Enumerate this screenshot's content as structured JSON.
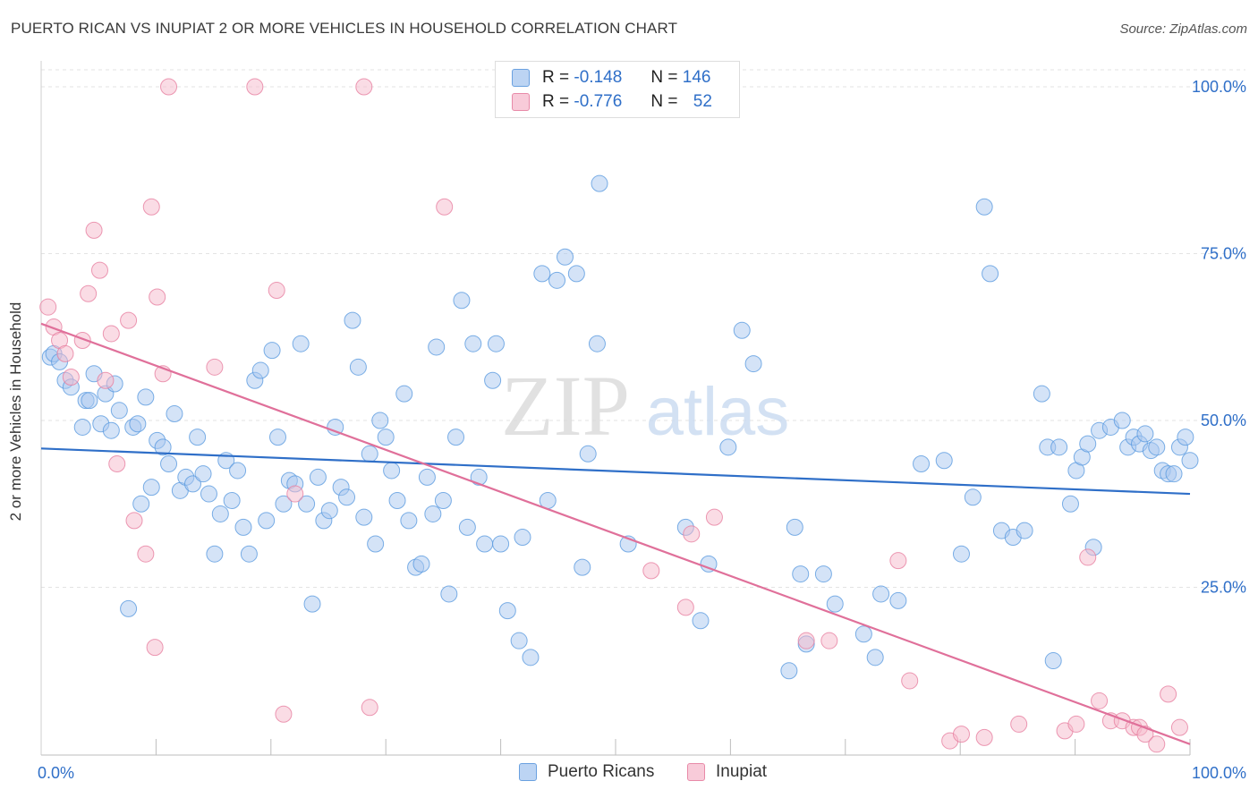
{
  "title": "PUERTO RICAN VS INUPIAT 2 OR MORE VEHICLES IN HOUSEHOLD CORRELATION CHART",
  "source": "Source: ZipAtlas.com",
  "watermark": {
    "zip": "ZIP",
    "atlas": "atlas"
  },
  "legend": {
    "rows": [
      {
        "r_label": "R =",
        "r_value": "-0.148",
        "n_label": "N =",
        "n_value": "146",
        "color": "#a9c8f0"
      },
      {
        "r_label": "R =",
        "r_value": "-0.776",
        "n_label": "N =",
        "n_value": "52",
        "color": "#f5b9cc"
      }
    ]
  },
  "bottom_legend": [
    "Puerto Ricans",
    "Inupiat"
  ],
  "chart_data": {
    "type": "scatter",
    "ylabel": "2 or more Vehicles in Household",
    "xlim": [
      0,
      100
    ],
    "ylim": [
      0,
      100
    ],
    "x_tick_labels": [
      "0.0%",
      "100.0%"
    ],
    "y_tick_labels": [
      "25.0%",
      "50.0%",
      "75.0%",
      "100.0%"
    ],
    "y_ticks": [
      25,
      50,
      75,
      100
    ],
    "grid": "horizontal dashed",
    "legend_position": "top-center",
    "colors": {
      "blue": "#5b9be0",
      "blue_fill": "#a9c8f0",
      "pink": "#e77fa0",
      "pink_fill": "#f5b9cc",
      "blue_line": "#2f6fc8",
      "pink_line": "#e0709a"
    },
    "series": [
      {
        "name": "Puerto Ricans",
        "trend": {
          "x": [
            0,
            100
          ],
          "y": [
            45.8,
            39.0
          ]
        },
        "points": [
          [
            0.8,
            59.5
          ],
          [
            1.1,
            60.0
          ],
          [
            1.6,
            58.8
          ],
          [
            2.1,
            56.0
          ],
          [
            2.6,
            55.0
          ],
          [
            3.6,
            49.0
          ],
          [
            3.9,
            53.0
          ],
          [
            4.2,
            53.0
          ],
          [
            4.6,
            57.0
          ],
          [
            5.2,
            49.5
          ],
          [
            5.6,
            54.0
          ],
          [
            6.1,
            48.5
          ],
          [
            6.4,
            55.5
          ],
          [
            6.8,
            51.5
          ],
          [
            7.6,
            21.8
          ],
          [
            8.0,
            49.0
          ],
          [
            8.4,
            49.5
          ],
          [
            8.7,
            37.5
          ],
          [
            9.1,
            53.5
          ],
          [
            9.6,
            40.0
          ],
          [
            10.1,
            47.0
          ],
          [
            10.6,
            46.0
          ],
          [
            11.1,
            43.5
          ],
          [
            11.6,
            51.0
          ],
          [
            12.1,
            39.5
          ],
          [
            12.6,
            41.5
          ],
          [
            13.2,
            40.5
          ],
          [
            13.6,
            47.5
          ],
          [
            14.1,
            42.0
          ],
          [
            14.6,
            39.0
          ],
          [
            15.1,
            30.0
          ],
          [
            15.6,
            36.0
          ],
          [
            16.1,
            44.0
          ],
          [
            16.6,
            38.0
          ],
          [
            17.1,
            42.5
          ],
          [
            17.6,
            34.0
          ],
          [
            18.1,
            30.0
          ],
          [
            18.6,
            56.0
          ],
          [
            19.1,
            57.5
          ],
          [
            19.6,
            35.0
          ],
          [
            20.1,
            60.5
          ],
          [
            20.6,
            47.5
          ],
          [
            21.1,
            37.5
          ],
          [
            21.6,
            41.0
          ],
          [
            22.1,
            40.5
          ],
          [
            22.6,
            61.5
          ],
          [
            23.1,
            37.5
          ],
          [
            23.6,
            22.5
          ],
          [
            24.1,
            41.5
          ],
          [
            24.6,
            35.0
          ],
          [
            25.1,
            36.5
          ],
          [
            25.6,
            49.0
          ],
          [
            26.1,
            40.0
          ],
          [
            26.6,
            38.5
          ],
          [
            27.1,
            65.0
          ],
          [
            27.6,
            58.0
          ],
          [
            28.1,
            35.5
          ],
          [
            28.6,
            45.0
          ],
          [
            29.1,
            31.5
          ],
          [
            29.5,
            50.0
          ],
          [
            30.0,
            47.5
          ],
          [
            30.5,
            42.5
          ],
          [
            31.0,
            38.0
          ],
          [
            31.6,
            54.0
          ],
          [
            32.0,
            35.0
          ],
          [
            32.6,
            28.0
          ],
          [
            33.1,
            28.5
          ],
          [
            33.6,
            41.5
          ],
          [
            34.1,
            36.0
          ],
          [
            34.4,
            61.0
          ],
          [
            35.0,
            38.0
          ],
          [
            35.5,
            24.0
          ],
          [
            36.1,
            47.5
          ],
          [
            36.6,
            68.0
          ],
          [
            37.1,
            34.0
          ],
          [
            37.6,
            61.5
          ],
          [
            38.1,
            41.5
          ],
          [
            38.6,
            31.5
          ],
          [
            39.3,
            56.0
          ],
          [
            39.6,
            61.5
          ],
          [
            40.0,
            31.5
          ],
          [
            40.6,
            21.5
          ],
          [
            41.6,
            17.0
          ],
          [
            41.9,
            32.5
          ],
          [
            42.6,
            14.5
          ],
          [
            43.6,
            72.0
          ],
          [
            44.1,
            38.0
          ],
          [
            44.9,
            71.0
          ],
          [
            45.6,
            74.5
          ],
          [
            46.6,
            72.0
          ],
          [
            47.1,
            28.0
          ],
          [
            47.6,
            45.0
          ],
          [
            48.4,
            61.5
          ],
          [
            48.6,
            85.5
          ],
          [
            51.1,
            31.5
          ],
          [
            56.1,
            34.0
          ],
          [
            57.4,
            20.0
          ],
          [
            58.1,
            28.5
          ],
          [
            59.8,
            46.0
          ],
          [
            61.0,
            63.5
          ],
          [
            62.0,
            58.5
          ],
          [
            65.1,
            12.5
          ],
          [
            65.6,
            34.0
          ],
          [
            66.1,
            27.0
          ],
          [
            66.6,
            16.5
          ],
          [
            68.1,
            27.0
          ],
          [
            69.1,
            22.5
          ],
          [
            71.6,
            18.0
          ],
          [
            72.6,
            14.5
          ],
          [
            73.1,
            24.0
          ],
          [
            74.6,
            23.0
          ],
          [
            76.6,
            43.5
          ],
          [
            78.6,
            44.0
          ],
          [
            80.1,
            30.0
          ],
          [
            81.1,
            38.5
          ],
          [
            82.1,
            82.0
          ],
          [
            82.6,
            72.0
          ],
          [
            83.6,
            33.5
          ],
          [
            84.6,
            32.5
          ],
          [
            85.6,
            33.5
          ],
          [
            87.1,
            54.0
          ],
          [
            88.1,
            14.0
          ],
          [
            87.6,
            46.0
          ],
          [
            88.6,
            46.0
          ],
          [
            89.6,
            37.5
          ],
          [
            90.1,
            42.5
          ],
          [
            90.6,
            44.5
          ],
          [
            91.1,
            46.5
          ],
          [
            91.6,
            31.0
          ],
          [
            92.1,
            48.5
          ],
          [
            93.1,
            49.0
          ],
          [
            94.1,
            50.0
          ],
          [
            94.6,
            46.0
          ],
          [
            95.1,
            47.5
          ],
          [
            95.6,
            46.5
          ],
          [
            96.1,
            48.0
          ],
          [
            96.6,
            45.5
          ],
          [
            97.1,
            46.0
          ],
          [
            97.6,
            42.5
          ],
          [
            98.1,
            42.0
          ],
          [
            98.6,
            42.0
          ],
          [
            99.1,
            46.0
          ],
          [
            99.6,
            47.5
          ],
          [
            100.0,
            44.0
          ]
        ]
      },
      {
        "name": "Inupiat",
        "trend": {
          "x": [
            0,
            100
          ],
          "y": [
            64.5,
            1.5
          ]
        },
        "points": [
          [
            0.6,
            67.0
          ],
          [
            1.1,
            64.0
          ],
          [
            1.6,
            62.0
          ],
          [
            2.1,
            60.0
          ],
          [
            2.6,
            56.5
          ],
          [
            3.6,
            62.0
          ],
          [
            4.1,
            69.0
          ],
          [
            4.6,
            78.5
          ],
          [
            5.1,
            72.5
          ],
          [
            5.6,
            56.0
          ],
          [
            6.1,
            63.0
          ],
          [
            6.6,
            43.5
          ],
          [
            7.6,
            65.0
          ],
          [
            8.1,
            35.0
          ],
          [
            9.1,
            30.0
          ],
          [
            9.6,
            82.0
          ],
          [
            9.9,
            16.0
          ],
          [
            10.1,
            68.5
          ],
          [
            10.6,
            57.0
          ],
          [
            11.1,
            100.0
          ],
          [
            15.1,
            58.0
          ],
          [
            18.6,
            100.0
          ],
          [
            20.5,
            69.5
          ],
          [
            21.1,
            6.0
          ],
          [
            22.1,
            39.0
          ],
          [
            28.6,
            7.0
          ],
          [
            28.1,
            100.0
          ],
          [
            35.1,
            82.0
          ],
          [
            53.1,
            27.5
          ],
          [
            56.1,
            22.0
          ],
          [
            56.6,
            33.0
          ],
          [
            58.6,
            35.5
          ],
          [
            66.6,
            17.0
          ],
          [
            68.6,
            17.0
          ],
          [
            74.6,
            29.0
          ],
          [
            75.6,
            11.0
          ],
          [
            79.1,
            2.0
          ],
          [
            80.1,
            3.0
          ],
          [
            82.1,
            2.5
          ],
          [
            85.1,
            4.5
          ],
          [
            89.1,
            3.5
          ],
          [
            90.1,
            4.5
          ],
          [
            91.1,
            29.5
          ],
          [
            92.1,
            8.0
          ],
          [
            93.1,
            5.0
          ],
          [
            94.1,
            5.0
          ],
          [
            95.1,
            4.0
          ],
          [
            95.6,
            4.0
          ],
          [
            96.1,
            3.0
          ],
          [
            97.1,
            1.5
          ],
          [
            98.1,
            9.0
          ],
          [
            99.1,
            4.0
          ]
        ]
      }
    ]
  }
}
